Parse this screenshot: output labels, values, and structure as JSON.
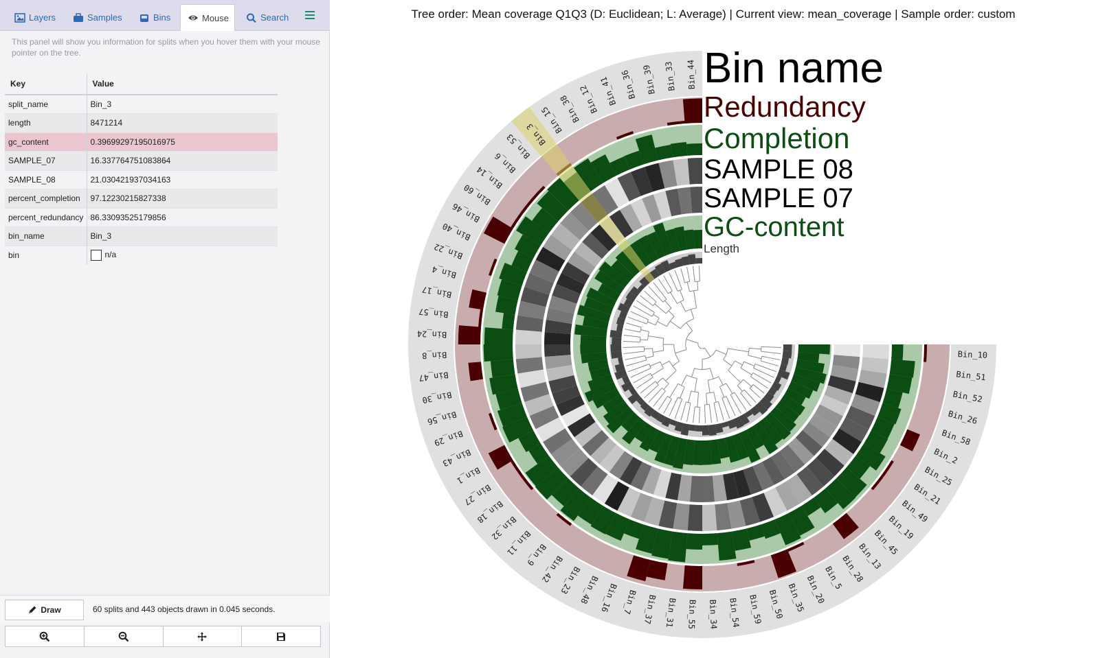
{
  "tabs": {
    "layers": "Layers",
    "samples": "Samples",
    "bins": "Bins",
    "mouse": "Mouse",
    "search": "Search",
    "menu_icon": "hamburger-menu-icon"
  },
  "mouse_panel": {
    "hint": "This panel will show you information for splits when you hover them with your mouse pointer on the tree.",
    "key_header": "Key",
    "value_header": "Value",
    "rows": [
      {
        "key": "split_name",
        "value": "Bin_3"
      },
      {
        "key": "length",
        "value": "8471214"
      },
      {
        "key": "gc_content",
        "value": "0.39699297195016975"
      },
      {
        "key": "SAMPLE_07",
        "value": "16.337764751083864"
      },
      {
        "key": "SAMPLE_08",
        "value": "21.030421937034163"
      },
      {
        "key": "percent_completion",
        "value": "97.12230215827338"
      },
      {
        "key": "percent_redundancy",
        "value": "86.33093525179856"
      },
      {
        "key": "bin_name",
        "value": "Bin_3"
      },
      {
        "key": "bin",
        "value": "n/a"
      }
    ],
    "highlight_color": "#ecc6cf"
  },
  "footer": {
    "draw_label": "Draw",
    "status": "60 splits and 443 objects drawn in 0.045 seconds.",
    "zoom_buttons": [
      "zoom-in-icon",
      "zoom-out-icon",
      "center-icon",
      "save-icon"
    ]
  },
  "main": {
    "title": "Tree order: Mean coverage Q1Q3 (D: Euclidean; L: Average) | Current view: mean_coverage | Sample order: custom",
    "highlighted_bin": "Bin_3",
    "bin_order": [
      "Bin_44",
      "Bin_33",
      "Bin_39",
      "Bin_36",
      "Bin_41",
      "Bin_12",
      "Bin_38",
      "Bin_15",
      "Bin_3",
      "Bin_53",
      "Bin_6",
      "Bin_14",
      "Bin_60",
      "Bin_46",
      "Bin_40",
      "Bin_22",
      "Bin_4",
      "Bin_17",
      "Bin_57",
      "Bin_24",
      "Bin_8",
      "Bin_47",
      "Bin_30",
      "Bin_56",
      "Bin_29",
      "Bin_43",
      "Bin_1",
      "Bin_27",
      "Bin_18",
      "Bin_32",
      "Bin_11",
      "Bin_9",
      "Bin_42",
      "Bin_23",
      "Bin_48",
      "Bin_16",
      "Bin_7",
      "Bin_37",
      "Bin_31",
      "Bin_55",
      "Bin_34",
      "Bin_54",
      "Bin_59",
      "Bin_50",
      "Bin_35",
      "Bin_20",
      "Bin_5",
      "Bin_28",
      "Bin_13",
      "Bin_45",
      "Bin_19",
      "Bin_49",
      "Bin_21",
      "Bin_25",
      "Bin_2",
      "Bin_58",
      "Bin_26",
      "Bin_52",
      "Bin_51",
      "Bin_10"
    ],
    "layers": [
      {
        "name": "Bin name",
        "color": "#000000"
      },
      {
        "name": "Redundancy",
        "color": "#4a0000"
      },
      {
        "name": "Completion",
        "color": "#0b4d12"
      },
      {
        "name": "SAMPLE 08",
        "color": "#000000"
      },
      {
        "name": "SAMPLE 07",
        "color": "#000000"
      },
      {
        "name": "GC-content",
        "color": "#0b4d12"
      },
      {
        "name": "Length",
        "color": "#333333"
      }
    ],
    "colors": {
      "bin_ring": "#e0e0e0",
      "redundancy_bg": "#c9acae",
      "redundancy_bar": "#4a0000",
      "completion_bg": "#a9c9a9",
      "completion_bar": "#0b4d12",
      "gc_bg": "#a9c9a9",
      "gc_bar": "#0b4d12",
      "length_bg": "#cccccc",
      "length_bar": "#444444",
      "highlight": "#d8d26a"
    }
  }
}
